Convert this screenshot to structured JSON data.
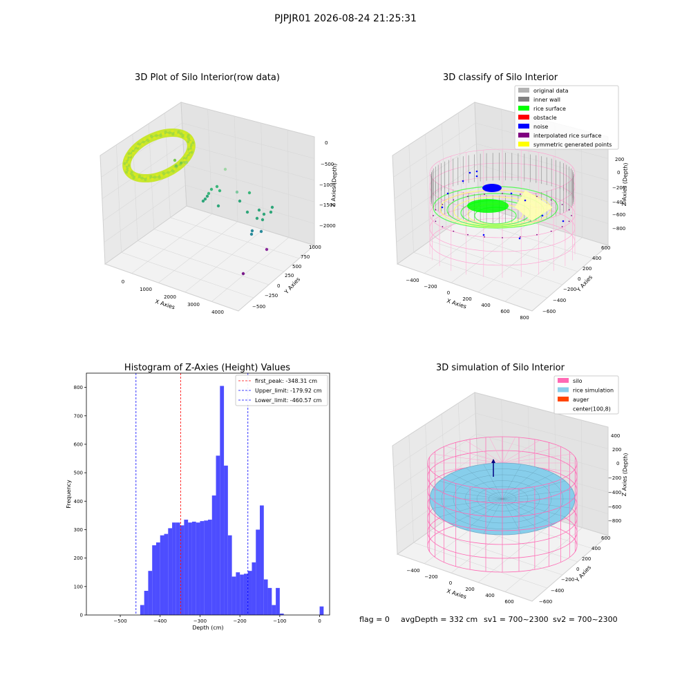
{
  "figure": {
    "suptitle": "PJPJR01 2026-08-24 21:25:31",
    "footer": {
      "flag": "flag = 0",
      "avg_depth": "avgDepth = 332 cm",
      "sv1": "sv1 = 700~2300",
      "sv2": "sv2 = 700~2300"
    }
  },
  "panels": {
    "raw": {
      "title": "3D Plot of Silo Interior(row data)",
      "xlabel": "X Axies",
      "ylabel": "Y Axies",
      "zlabel": "Z Axies (Depth)",
      "xticks": [
        "0",
        "1000",
        "2000",
        "3000",
        "4000"
      ],
      "yticks": [
        "−500",
        "−250",
        "0",
        "250",
        "500",
        "750",
        "1000"
      ],
      "zticks": [
        "0",
        "−500",
        "−1000",
        "−1500",
        "−2000"
      ]
    },
    "classify": {
      "title": "3D classify of Silo Interior",
      "xlabel": "X Axies",
      "ylabel": "Y Axies",
      "zlabel": "Z Axies (Depth)",
      "xticks": [
        "−400",
        "−200",
        "0",
        "200",
        "400",
        "600",
        "800"
      ],
      "yticks": [
        "−600",
        "−400",
        "−200",
        "0",
        "200",
        "400",
        "600"
      ],
      "zticks": [
        "200",
        "0",
        "−200",
        "−400",
        "−600",
        "−800"
      ],
      "legend": [
        {
          "label": "original data",
          "color": "#b3b3b3"
        },
        {
          "label": "inner wall",
          "color": "#808080"
        },
        {
          "label": "rice surface",
          "color": "#00ff00"
        },
        {
          "label": "obstacle",
          "color": "#ff0000"
        },
        {
          "label": "noise",
          "color": "#0000ff"
        },
        {
          "label": "interpolated rice surface",
          "color": "#800080"
        },
        {
          "label": "symmetric generated points",
          "color": "#ffff00"
        }
      ]
    },
    "simulation": {
      "title": "3D simulation of Silo Interior",
      "xlabel": "X Axies",
      "ylabel": "Y Axies",
      "zlabel": "Z Axies (Depth)",
      "xticks": [
        "−400",
        "−200",
        "0",
        "200",
        "400",
        "600"
      ],
      "yticks": [
        "−600",
        "−400",
        "−200",
        "0",
        "200",
        "400",
        "600"
      ],
      "zticks": [
        "400",
        "200",
        "0",
        "−200",
        "−400",
        "−600",
        "−800"
      ],
      "legend": [
        {
          "label": "silo",
          "color": "#ff69b4"
        },
        {
          "label": "rice simulation",
          "color": "#87ceeb"
        },
        {
          "label": "auger",
          "color": "#ff4500"
        },
        {
          "label": "center(100,8)",
          "color": "#ffffff"
        }
      ]
    }
  },
  "chart_data": [
    {
      "type": "scatter",
      "title": "3D Plot of Silo Interior(row data)",
      "xlabel": "X Axies",
      "ylabel": "Y Axies",
      "zlabel": "Z Axies (Depth)",
      "xlim": [
        -600,
        4600
      ],
      "ylim": [
        -650,
        1100
      ],
      "zlim": [
        -2300,
        100
      ]
    },
    {
      "type": "scatter",
      "title": "3D classify of Silo Interior",
      "xlabel": "X Axies",
      "ylabel": "Y Axies",
      "zlabel": "Z Axies (Depth)",
      "series": [
        {
          "name": "original data"
        },
        {
          "name": "inner wall"
        },
        {
          "name": "rice surface"
        },
        {
          "name": "obstacle"
        },
        {
          "name": "noise"
        },
        {
          "name": "interpolated rice surface"
        },
        {
          "name": "symmetric generated points"
        }
      ]
    },
    {
      "type": "bar",
      "title": "Histogram of Z-Axies (Height) Values",
      "xlabel": "Depth (cm)",
      "ylabel": "Frequency",
      "xlim": [
        -585,
        25
      ],
      "ylim": [
        0,
        850
      ],
      "xticks": [
        -500,
        -400,
        -300,
        -200,
        -100,
        0
      ],
      "yticks": [
        0,
        100,
        200,
        300,
        400,
        500,
        600,
        700,
        800
      ],
      "bin_width": 10,
      "bin_starts": [
        -450,
        -440,
        -430,
        -420,
        -410,
        -400,
        -390,
        -380,
        -370,
        -360,
        -350,
        -340,
        -330,
        -320,
        -310,
        -300,
        -290,
        -280,
        -270,
        -260,
        -250,
        -240,
        -230,
        -220,
        -210,
        -200,
        -190,
        -180,
        -170,
        -160,
        -150,
        -140,
        -130,
        -120,
        -110,
        -100,
        -90,
        -80,
        -70,
        -60,
        -50,
        -40,
        -30,
        -20,
        -10,
        0
      ],
      "values": [
        35,
        85,
        155,
        245,
        255,
        280,
        285,
        305,
        325,
        325,
        315,
        335,
        325,
        328,
        325,
        330,
        332,
        335,
        420,
        560,
        805,
        525,
        280,
        135,
        150,
        142,
        145,
        155,
        185,
        300,
        385,
        125,
        95,
        35,
        95,
        5,
        0,
        0,
        0,
        0,
        0,
        0,
        0,
        0,
        0,
        30
      ],
      "vlines": [
        {
          "name": "first_peak: -348.31 cm",
          "x": -348.31,
          "color": "#ff0000"
        },
        {
          "name": "Upper_limit: -179.92 cm",
          "x": -179.92,
          "color": "#0000ff"
        },
        {
          "name": "Lower_limit: -460.57 cm",
          "x": -460.57,
          "color": "#0000ff"
        }
      ]
    },
    {
      "type": "scatter",
      "title": "3D simulation of Silo Interior",
      "xlabel": "X Axies",
      "ylabel": "Y Axies",
      "zlabel": "Z Axies (Depth)",
      "series": [
        {
          "name": "silo"
        },
        {
          "name": "rice simulation"
        },
        {
          "name": "auger"
        },
        {
          "name": "center(100,8)"
        }
      ]
    }
  ]
}
